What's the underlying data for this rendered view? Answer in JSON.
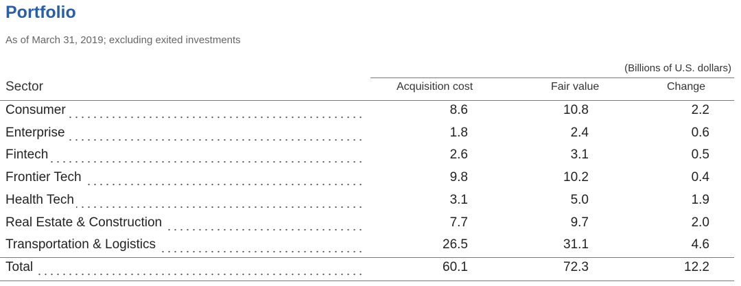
{
  "header": {
    "title": "Portfolio",
    "subtitle": "As of March 31, 2019; excluding exited investments"
  },
  "table": {
    "unit_note": "(Billions of U.S. dollars)",
    "columns": [
      "Sector",
      "Acquisition cost",
      "Fair value",
      "Change"
    ],
    "rows": [
      [
        "Consumer",
        "8.6",
        "10.8",
        "2.2"
      ],
      [
        "Enterprise",
        "1.8",
        "2.4",
        "0.6"
      ],
      [
        "Fintech",
        "2.6",
        "3.1",
        "0.5"
      ],
      [
        "Frontier Tech",
        "9.8",
        "10.2",
        "0.4"
      ],
      [
        "Health Tech",
        "3.1",
        "5.0",
        "1.9"
      ],
      [
        "Real Estate & Construction",
        "7.7",
        "9.7",
        "2.0"
      ],
      [
        "Transportation & Logistics",
        "26.5",
        "31.1",
        "4.6"
      ]
    ],
    "total": [
      "Total",
      "60.1",
      "72.3",
      "12.2"
    ]
  }
}
